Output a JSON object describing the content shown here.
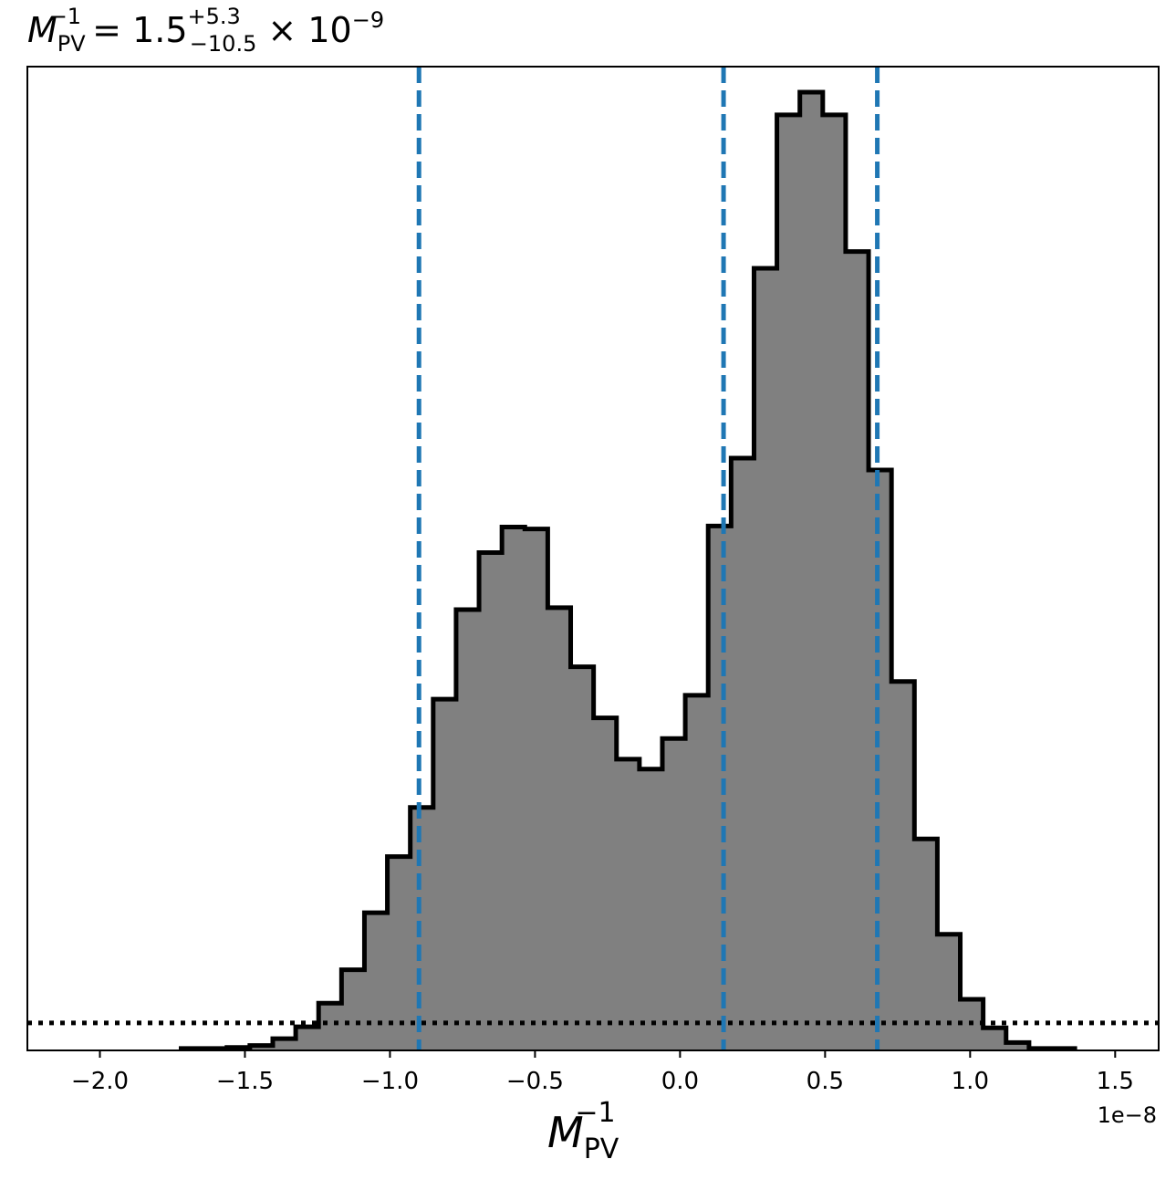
{
  "chart_data": {
    "type": "histogram",
    "title": {
      "symbol": "M",
      "sub": "PV",
      "sup": "−1",
      "eq": " = ",
      "median": "1.5",
      "err_plus": "+5.3",
      "err_minus": "−10.5",
      "times": " × 10",
      "exp": "−9"
    },
    "xlabel": {
      "symbol": "M",
      "sub": "PV",
      "sup": "−1"
    },
    "x_offset_label": "1e−8",
    "xlim": [
      -2.25e-08,
      1.65e-08
    ],
    "ylim": [
      0,
      1.0
    ],
    "xticks": [
      -2e-08,
      -1.5e-08,
      -1e-08,
      -5e-09,
      0.0,
      5e-09,
      1e-08,
      1.5e-08
    ],
    "xtick_labels": [
      "−2.0",
      "−1.5",
      "−1.0",
      "−0.5",
      "0.0",
      "0.5",
      "1.0",
      "1.5"
    ],
    "bins_x_start": -1.72e-08,
    "bin_width": 7.9e-10,
    "counts": [
      0.002,
      0.002,
      0.003,
      0.005,
      0.012,
      0.024,
      0.048,
      0.082,
      0.14,
      0.197,
      0.247,
      0.357,
      0.448,
      0.506,
      0.532,
      0.53,
      0.45,
      0.39,
      0.338,
      0.296,
      0.286,
      0.317,
      0.361,
      0.533,
      0.602,
      0.795,
      0.951,
      0.974,
      0.951,
      0.812,
      0.59,
      0.375,
      0.215,
      0.118,
      0.052,
      0.023,
      0.008,
      0.002,
      0.002
    ],
    "fill_color": "#808080",
    "edge_color": "#000000",
    "quantile_lines": [
      -9e-09,
      1.5e-09,
      6.8e-09
    ],
    "quantile_color": "#1f77b4",
    "baseline_level": 0.028,
    "grid": false
  }
}
